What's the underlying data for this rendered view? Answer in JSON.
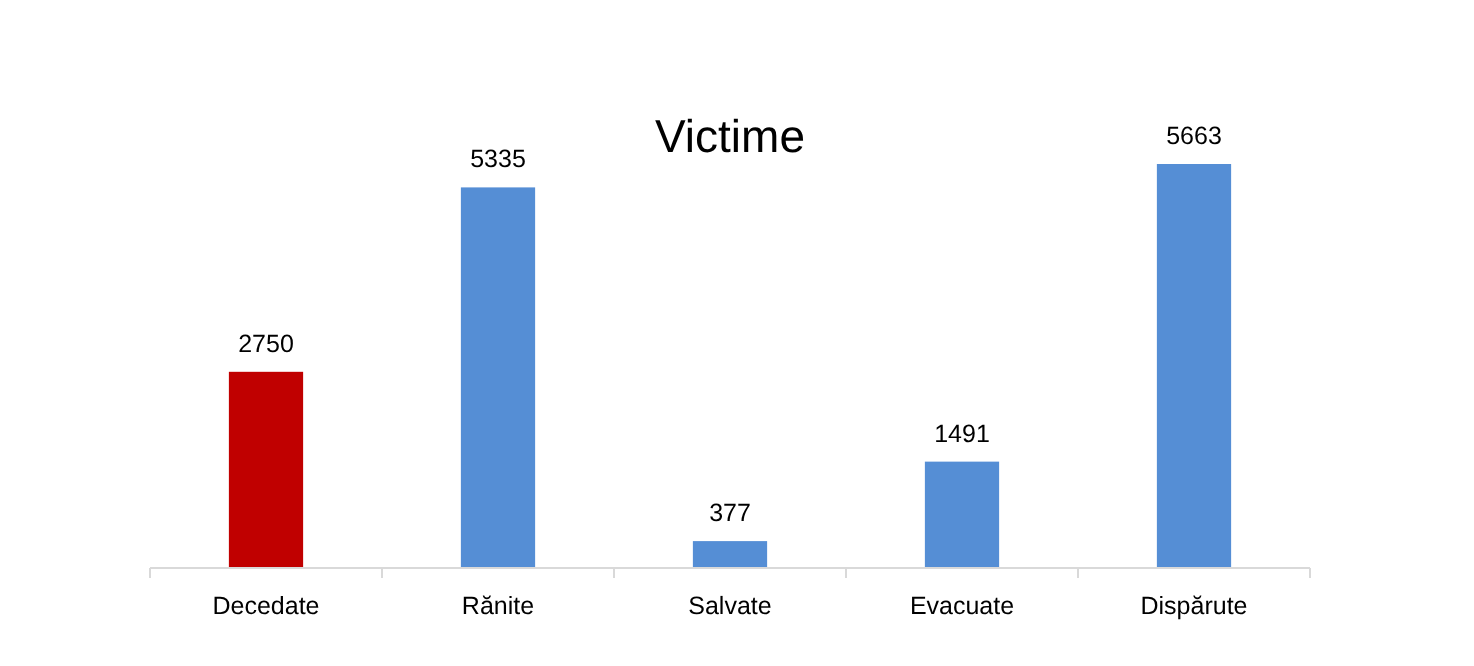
{
  "chart_data": {
    "type": "bar",
    "title": "Victime",
    "categories": [
      "Decedate",
      "Rănite",
      "Salvate",
      "Evacuate",
      "Dispărute"
    ],
    "values": [
      2750,
      5335,
      377,
      1491,
      5663
    ],
    "colors": [
      "#c00000",
      "#558ed5",
      "#558ed5",
      "#558ed5",
      "#558ed5"
    ],
    "data_labels": true
  }
}
